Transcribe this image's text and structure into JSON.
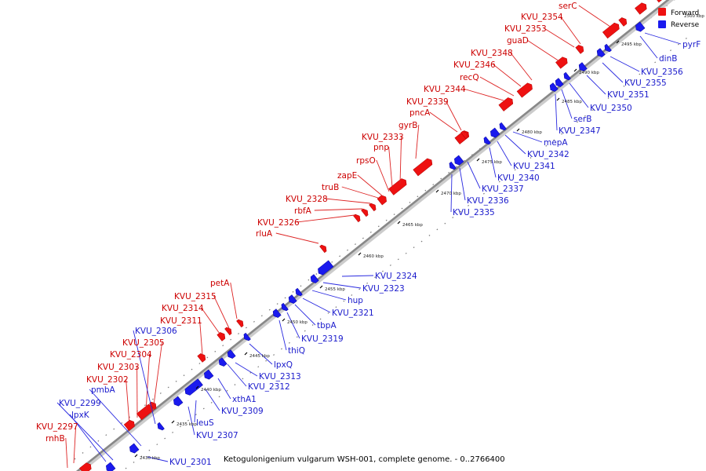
{
  "caption": "Ketogulonigenium vulgarum WSH-001, complete genome. - 0..2766400",
  "legend": {
    "forward_label": "Forward",
    "reverse_label": "Reverse",
    "forward_color": "#ee1111",
    "reverse_color": "#1a1aee"
  },
  "label_colors": {
    "forward": "#cc0000",
    "reverse": "#1a1acc"
  },
  "track_color": "#888888",
  "partial_top_label": "2500 kbp",
  "ticks": [
    "2430 kbp",
    "2435 kbp",
    "2440 kbp",
    "2445 kbp",
    "2450 kbp",
    "2455 kbp",
    "2460 kbp",
    "2465 kbp",
    "2470 kbp",
    "2475 kbp",
    "2480 kbp",
    "2485 kbp",
    "2490 kbp",
    "2495 kbp"
  ],
  "forward_labels": [
    "rnhB",
    "KVU_2297",
    "KVU_2302",
    "KVU_2303",
    "KVU_2304",
    "KVU_2305",
    "KVU_2311",
    "KVU_2314",
    "KVU_2315",
    "petA",
    "rluA",
    "KVU_2326",
    "rbfA",
    "KVU_2328",
    "truB",
    "zapE",
    "rpsO",
    "pnp",
    "KVU_2333",
    "gyrB",
    "pncA",
    "KVU_2339",
    "KVU_2344",
    "recQ",
    "KVU_2346",
    "KVU_2348",
    "guaD",
    "KVU_2353",
    "KVU_2354",
    "serC"
  ],
  "reverse_labels": [
    "lpxK",
    "KVU_2299",
    "pmbA",
    "KVU_2306",
    "KVU_2301",
    "KVU_2307",
    "leuS",
    "KVU_2309",
    "xthA1",
    "KVU_2312",
    "KVU_2313",
    "lpxQ",
    "thiQ",
    "KVU_2319",
    "tbpA",
    "KVU_2321",
    "hup",
    "KVU_2323",
    "KVU_2324",
    "KVU_2335",
    "KVU_2336",
    "KVU_2337",
    "KVU_2340",
    "KVU_2341",
    "KVU_2342",
    "mepA",
    "KVU_2347",
    "serB",
    "KVU_2350",
    "KVU_2351",
    "KVU_2355",
    "KVU_2356",
    "dinB",
    "pyrF"
  ]
}
